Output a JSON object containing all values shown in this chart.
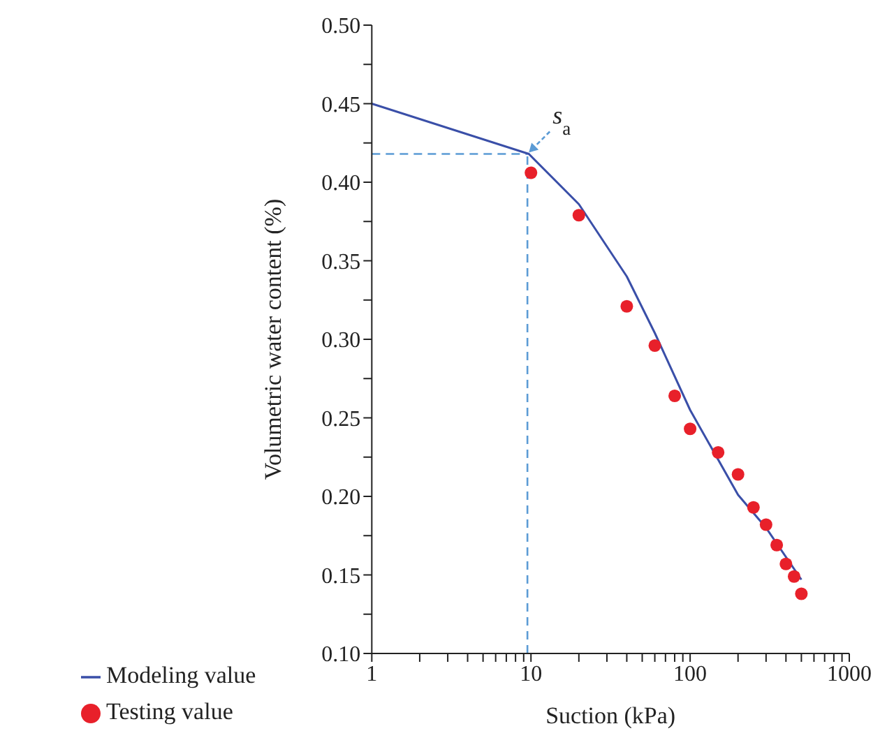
{
  "chart_data": {
    "type": "line",
    "xlabel": "Suction (kPa)",
    "ylabel": "Volumetric water content (%)",
    "log": "x",
    "xlim": [
      1,
      1000
    ],
    "xticks": [
      1,
      {
        "value": 2,
        "label": null
      },
      {
        "value": 3,
        "label": null
      },
      {
        "value": 4,
        "label": null
      },
      {
        "value": 5,
        "label": null
      },
      {
        "value": 6,
        "label": null
      },
      {
        "value": 7,
        "label": null
      },
      {
        "value": 8,
        "label": null
      },
      {
        "value": 9,
        "label": null
      },
      10,
      {
        "value": 20,
        "label": null
      },
      {
        "value": 30,
        "label": null
      },
      {
        "value": 40,
        "label": null
      },
      {
        "value": 50,
        "label": null
      },
      {
        "value": 60,
        "label": null
      },
      {
        "value": 70,
        "label": null
      },
      {
        "value": 80,
        "label": null
      },
      {
        "value": 90,
        "label": null
      },
      100,
      {
        "value": 200,
        "label": null
      },
      {
        "value": 300,
        "label": null
      },
      {
        "value": 400,
        "label": null
      },
      {
        "value": 500,
        "label": null
      },
      {
        "value": 600,
        "label": null
      },
      {
        "value": 700,
        "label": null
      },
      {
        "value": 800,
        "label": null
      },
      {
        "value": 900,
        "label": null
      },
      1000
    ],
    "ylim": [
      0.1,
      0.5
    ],
    "yticks": [
      {
        "value": 0.1,
        "label": "0.10"
      },
      {
        "value": 0.125,
        "label": null
      },
      {
        "value": 0.15,
        "label": "0.15"
      },
      {
        "value": 0.175,
        "label": null
      },
      {
        "value": 0.2,
        "label": "0.20"
      },
      {
        "value": 0.225,
        "label": null
      },
      {
        "value": 0.25,
        "label": "0.25"
      },
      {
        "value": 0.275,
        "label": null
      },
      {
        "value": 0.3,
        "label": "0.30"
      },
      {
        "value": 0.325,
        "label": null
      },
      {
        "value": 0.35,
        "label": "0.35"
      },
      {
        "value": 0.375,
        "label": null
      },
      {
        "value": 0.4,
        "label": "0.40"
      },
      {
        "value": 0.425,
        "label": null
      },
      {
        "value": 0.45,
        "label": "0.45"
      },
      {
        "value": 0.475,
        "label": null
      },
      {
        "value": 0.5,
        "label": "0.50"
      }
    ],
    "grid": false,
    "legend": "bottom",
    "series": [
      {
        "name": "Modeling value",
        "color": "#3a4fa8",
        "marker": "none",
        "line_style": "solid",
        "x": [
          1,
          9.7,
          20,
          40,
          60,
          100,
          200,
          300,
          500
        ],
        "values": [
          0.45,
          0.418,
          0.386,
          0.34,
          0.304,
          0.255,
          0.201,
          0.18,
          0.147
        ]
      },
      {
        "name": "Testing value",
        "type": "scatter",
        "color": "#e8202a",
        "marker": "circle",
        "x": [
          10,
          20,
          40,
          60,
          80,
          100,
          150,
          200,
          250,
          300,
          350,
          400,
          450,
          500
        ],
        "values": [
          0.406,
          0.379,
          0.321,
          0.296,
          0.264,
          0.243,
          0.228,
          0.214,
          0.193,
          0.182,
          0.169,
          0.157,
          0.149,
          0.138
        ]
      }
    ],
    "ref_lines": [
      {
        "axis": "x",
        "value": 9.5,
        "color": "#5b9bd5",
        "line_style": "dashed"
      },
      {
        "axis": "y",
        "value": 0.418,
        "color": "#5b9bd5",
        "line_style": "dashed"
      }
    ],
    "annotations": [
      {
        "text": "s$_{a}$",
        "x": 9.5,
        "y": 0.418
      }
    ]
  }
}
